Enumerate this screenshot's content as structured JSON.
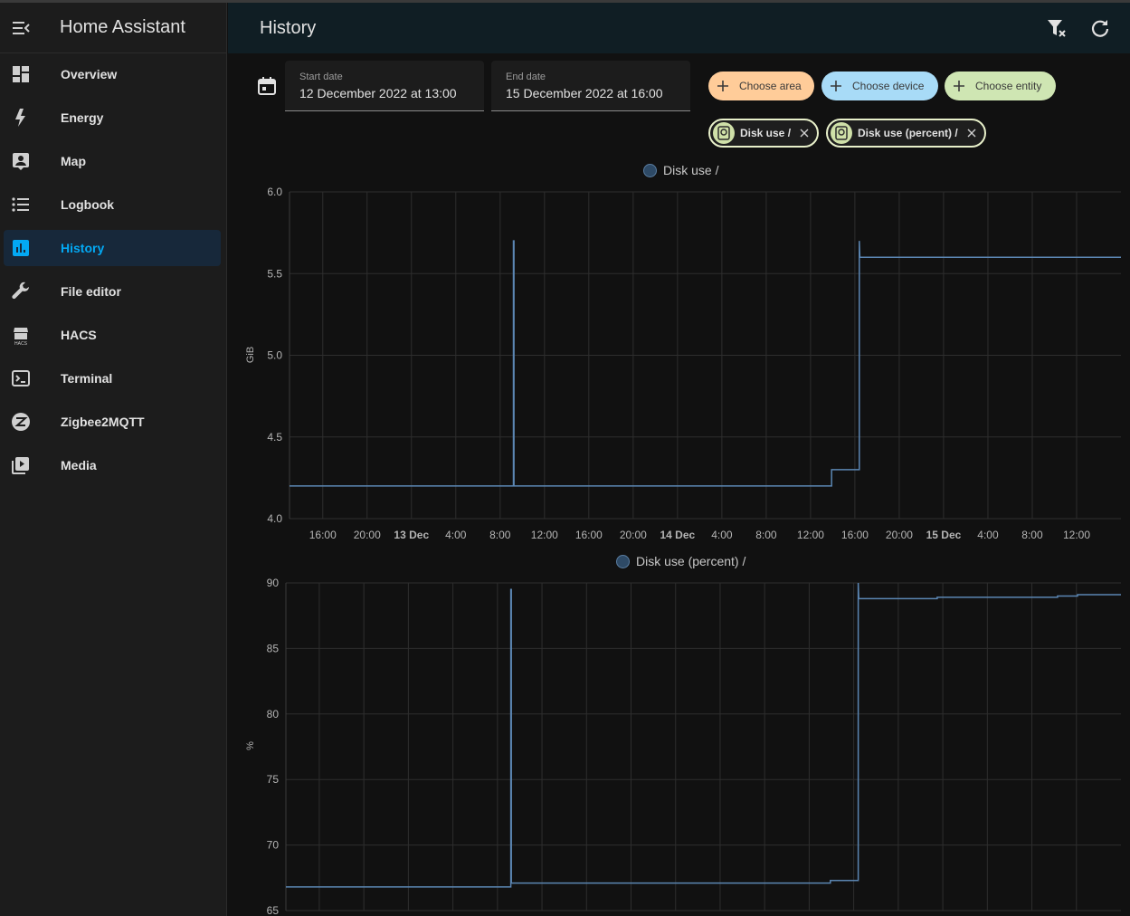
{
  "app_title": "Home Assistant",
  "sidebar": {
    "items": [
      {
        "label": "Overview",
        "icon": "view-dashboard-icon"
      },
      {
        "label": "Energy",
        "icon": "lightning-bolt-icon"
      },
      {
        "label": "Map",
        "icon": "account-box-icon"
      },
      {
        "label": "Logbook",
        "icon": "format-list-bulleted-icon"
      },
      {
        "label": "History",
        "icon": "chart-box-icon",
        "active": true
      },
      {
        "label": "File editor",
        "icon": "wrench-icon"
      },
      {
        "label": "HACS",
        "icon": "hacs-icon"
      },
      {
        "label": "Terminal",
        "icon": "console-icon"
      },
      {
        "label": "Zigbee2MQTT",
        "icon": "zigbee-icon"
      },
      {
        "label": "Media",
        "icon": "play-box-multiple-icon"
      }
    ]
  },
  "header": {
    "title": "History"
  },
  "dates": {
    "start_label": "Start date",
    "start_value": "12 December 2022 at 13:00",
    "end_label": "End date",
    "end_value": "15 December 2022 at 16:00"
  },
  "targets": {
    "area": "Choose area",
    "device": "Choose device",
    "entity": "Choose entity"
  },
  "selected_entities": [
    "Disk use /",
    "Disk use (percent) /"
  ],
  "colors": {
    "accent": "#03a9f4",
    "line": "#5b86b3",
    "area_chip": "#ffcc99",
    "device_chip": "#a8dbf7",
    "entity_chip": "#cfe6b3"
  },
  "chart_data": [
    {
      "type": "line",
      "title": "",
      "legend": "Disk use /",
      "ylabel": "GiB",
      "ylim": [
        4.0,
        6.0
      ],
      "yticks": [
        "6.0",
        "5.5",
        "5.0",
        "4.5",
        "4.0"
      ],
      "xticks": [
        {
          "label": "16:00",
          "bold": false
        },
        {
          "label": "20:00",
          "bold": false
        },
        {
          "label": "13 Dec",
          "bold": true
        },
        {
          "label": "4:00",
          "bold": false
        },
        {
          "label": "8:00",
          "bold": false
        },
        {
          "label": "12:00",
          "bold": false
        },
        {
          "label": "16:00",
          "bold": false
        },
        {
          "label": "20:00",
          "bold": false
        },
        {
          "label": "14 Dec",
          "bold": true
        },
        {
          "label": "4:00",
          "bold": false
        },
        {
          "label": "8:00",
          "bold": false
        },
        {
          "label": "12:00",
          "bold": false
        },
        {
          "label": "16:00",
          "bold": false
        },
        {
          "label": "20:00",
          "bold": false
        },
        {
          "label": "15 Dec",
          "bold": true
        },
        {
          "label": "4:00",
          "bold": false
        },
        {
          "label": "8:00",
          "bold": false
        },
        {
          "label": "12:00",
          "bold": false
        }
      ],
      "x_range_hours": [
        0,
        75
      ],
      "series": [
        {
          "x": [
            0,
            20.2,
            20.2,
            20.25,
            20.25,
            48.9,
            48.9,
            51.4,
            51.4,
            51.45,
            75
          ],
          "y": [
            4.2,
            4.2,
            5.7,
            5.7,
            4.2,
            4.2,
            4.3,
            4.3,
            5.7,
            5.6,
            5.6
          ]
        }
      ]
    },
    {
      "type": "line",
      "title": "",
      "legend": "Disk use (percent) /",
      "ylabel": "%",
      "ylim": [
        65,
        90
      ],
      "yticks": [
        "90",
        "85",
        "80",
        "75",
        "70",
        "65"
      ],
      "x_range_hours": [
        0,
        75
      ],
      "series": [
        {
          "x": [
            0,
            20.2,
            20.2,
            20.25,
            20.25,
            48.9,
            48.9,
            51.4,
            51.4,
            51.45,
            58.5,
            58.5,
            69.3,
            69.3,
            71.1,
            71.1,
            75
          ],
          "y": [
            66.8,
            66.8,
            89.5,
            89.5,
            67.1,
            67.1,
            67.3,
            67.3,
            90,
            88.8,
            88.8,
            88.9,
            88.9,
            89.0,
            89.0,
            89.1,
            89.1
          ]
        }
      ]
    }
  ]
}
